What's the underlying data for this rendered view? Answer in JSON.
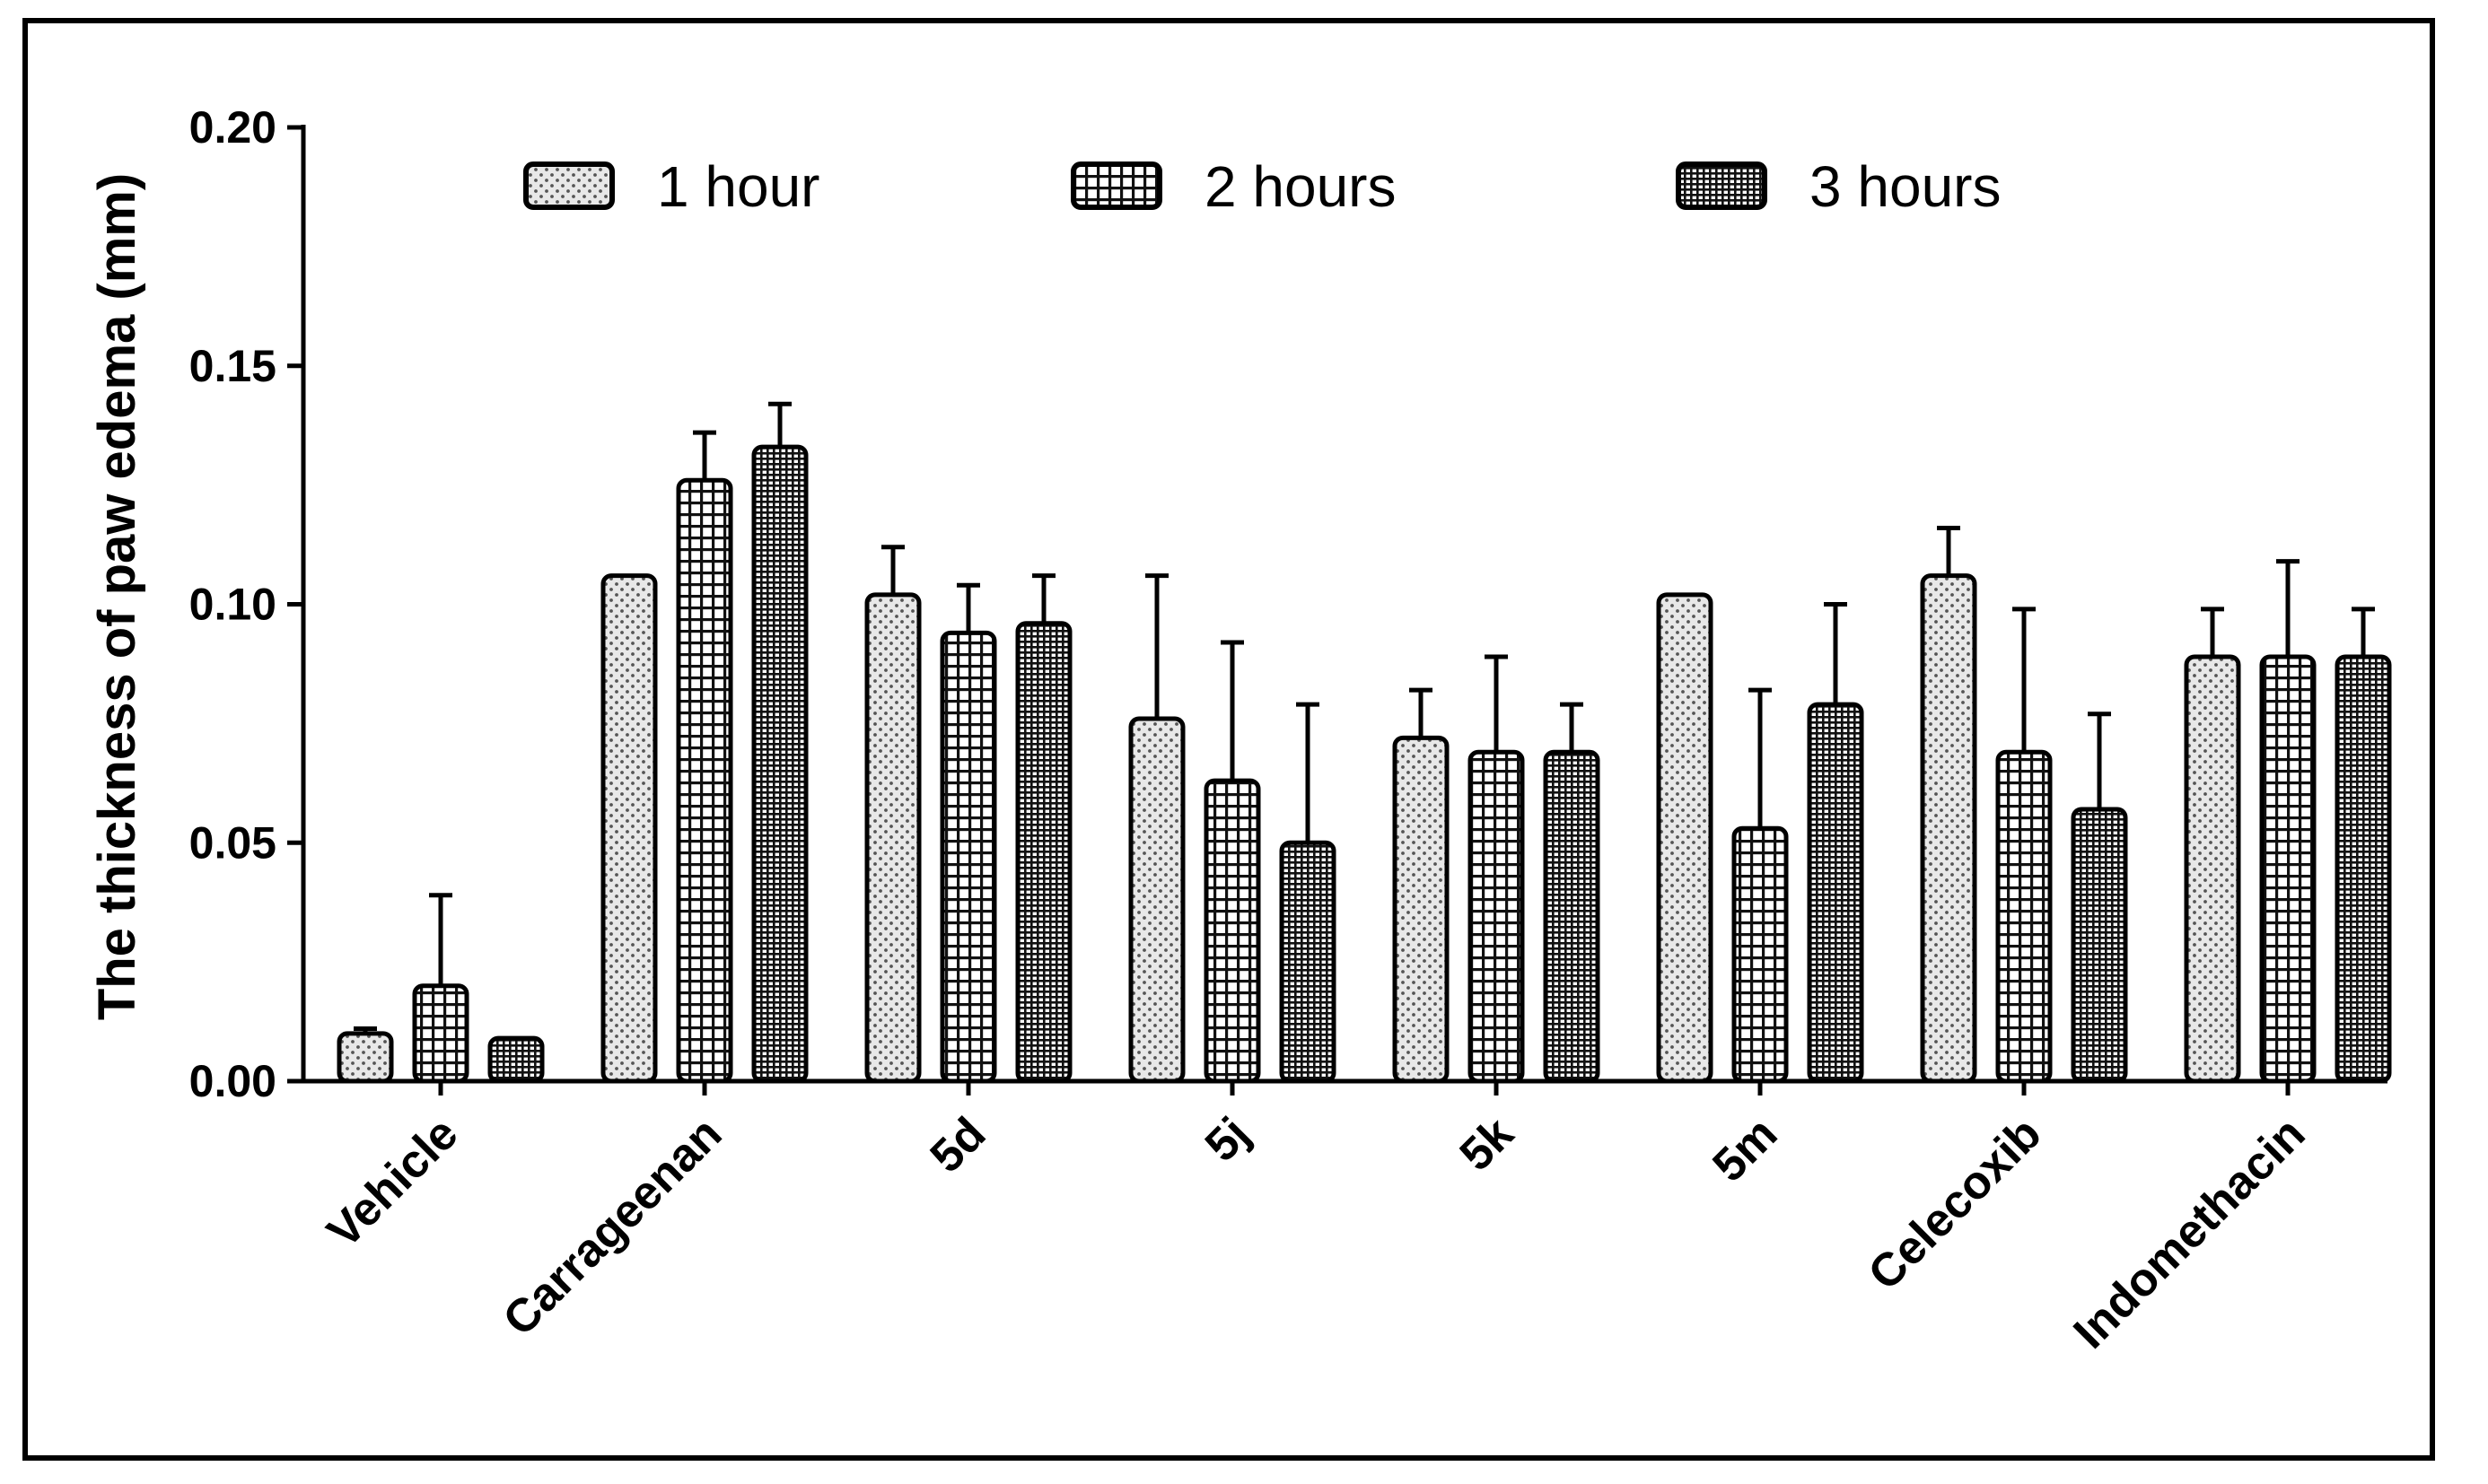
{
  "chart_data": {
    "type": "bar",
    "title": "",
    "xlabel": "",
    "ylabel": "The thickness of paw edema (mm)",
    "ylim": [
      0,
      0.2
    ],
    "yticks": [
      "0.00",
      "0.05",
      "0.10",
      "0.15",
      "0.20"
    ],
    "ytick_values": [
      0,
      0.05,
      0.1,
      0.15,
      0.2
    ],
    "categories": [
      "Vehicle",
      "Carrageenan",
      "5d",
      "5j",
      "5k",
      "5m",
      "Celecoxib",
      "Indomethacin"
    ],
    "legend_position": "top",
    "series": [
      {
        "name": "1 hour",
        "pattern": "dots",
        "values": [
          0.01,
          0.106,
          0.102,
          0.076,
          0.072,
          0.102,
          0.106,
          0.089
        ],
        "errors": [
          0.001,
          0.0,
          0.01,
          0.03,
          0.01,
          0.0,
          0.01,
          0.01
        ]
      },
      {
        "name": "2 hours",
        "pattern": "grid",
        "values": [
          0.02,
          0.126,
          0.094,
          0.063,
          0.069,
          0.053,
          0.069,
          0.089
        ],
        "errors": [
          0.019,
          0.01,
          0.01,
          0.029,
          0.02,
          0.029,
          0.03,
          0.02
        ]
      },
      {
        "name": "3 hours",
        "pattern": "dense",
        "values": [
          0.009,
          0.133,
          0.096,
          0.05,
          0.069,
          0.079,
          0.057,
          0.089
        ],
        "errors": [
          0.0,
          0.009,
          0.01,
          0.029,
          0.01,
          0.021,
          0.02,
          0.01
        ]
      }
    ]
  },
  "colors": {
    "ink": "#000000",
    "fill_1h": "#e6e6e6",
    "fill_2h": "#ffffff",
    "fill_3h": "#ffffff"
  }
}
